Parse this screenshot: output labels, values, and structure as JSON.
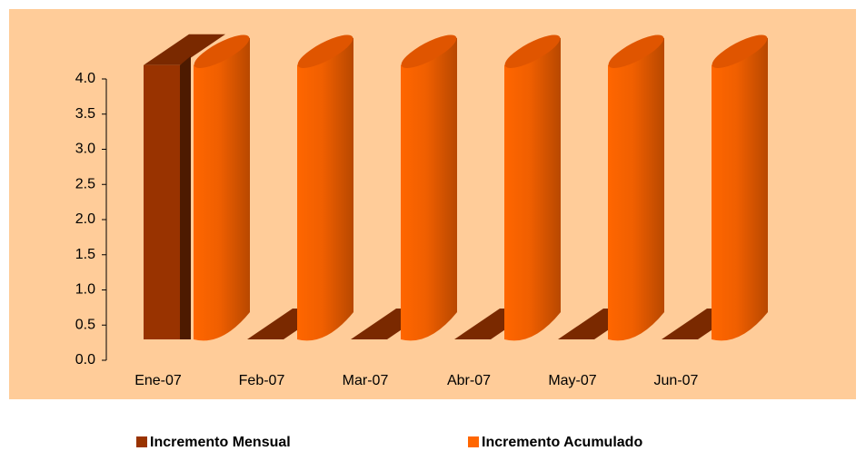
{
  "chart_data": {
    "type": "bar3d",
    "categories": [
      "Ene-07",
      "Feb-07",
      "Mar-07",
      "Abr-07",
      "May-07",
      "Jun-07"
    ],
    "series": [
      {
        "name": "Incremento Mensual",
        "color": "#993300",
        "values": [
          3.9,
          0,
          0,
          0,
          0,
          0
        ]
      },
      {
        "name": "Incremento Acumulado",
        "color": "#FF6600",
        "values": [
          3.9,
          3.9,
          3.9,
          3.9,
          3.9,
          3.9
        ]
      }
    ],
    "ylim": [
      0,
      4
    ],
    "yticks": [
      {
        "value": 0,
        "label": "0.0"
      },
      {
        "value": 0.5,
        "label": "0.5"
      },
      {
        "value": 1,
        "label": "1.0"
      },
      {
        "value": 1.5,
        "label": "1.5"
      },
      {
        "value": 2,
        "label": "2.0"
      },
      {
        "value": 2.5,
        "label": "2.5"
      },
      {
        "value": 3,
        "label": "3.0"
      },
      {
        "value": 3.5,
        "label": "3.5"
      },
      {
        "value": 4,
        "label": "4.0"
      }
    ],
    "background": "#FFCC99"
  }
}
